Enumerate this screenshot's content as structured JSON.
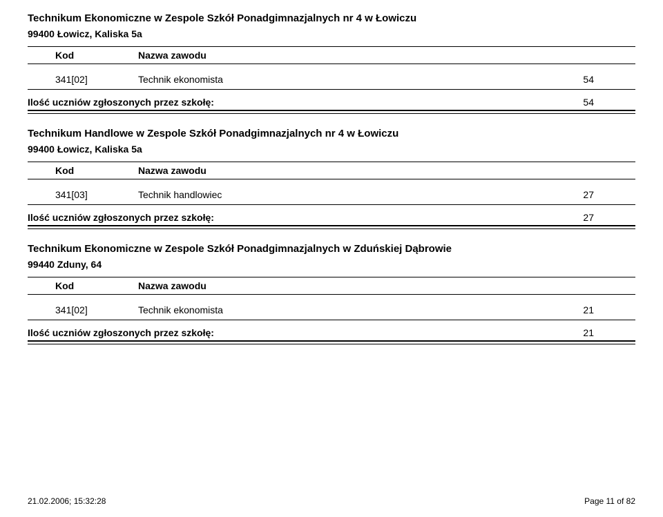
{
  "labels": {
    "kod": "Kod",
    "nazwa": "Nazwa zawodu",
    "total": "Ilość uczniów zgłoszonych przez szkołę:"
  },
  "sections": [
    {
      "school_name": "Technikum Ekonomiczne w Zespole Szkół Ponadgimnazjalnych nr 4 w Łowiczu",
      "school_addr": "99400 Łowicz, Kaliska 5a",
      "row": {
        "kod": "341[02]",
        "nazwa": "Technik ekonomista",
        "val": "54"
      },
      "total": "54"
    },
    {
      "school_name": "Technikum Handlowe w Zespole Szkół Ponadgimnazjalnych nr 4 w Łowiczu",
      "school_addr": "99400 Łowicz, Kaliska 5a",
      "row": {
        "kod": "341[03]",
        "nazwa": "Technik handlowiec",
        "val": "27"
      },
      "total": "27"
    },
    {
      "school_name": "Technikum Ekonomiczne w Zespole Szkół Ponadgimnazjalnych w Zduńskiej Dąbrowie",
      "school_addr": "99440 Zduny, 64",
      "row": {
        "kod": "341[02]",
        "nazwa": "Technik ekonomista",
        "val": "21"
      },
      "total": "21"
    }
  ],
  "footer": {
    "left": "21.02.2006; 15:32:28",
    "right": "Page 11 of 82"
  },
  "colors": {
    "text": "#000000",
    "background": "#ffffff",
    "rule": "#000000"
  },
  "font": {
    "family": "Arial",
    "size_title": 15,
    "size_body": 14,
    "size_footer": 12
  }
}
